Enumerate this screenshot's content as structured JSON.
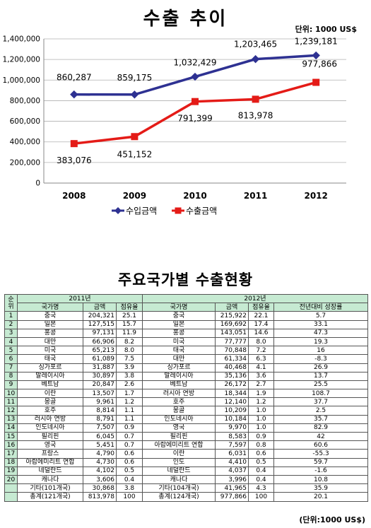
{
  "chart_data": {
    "type": "line",
    "title": "수출 추이",
    "unit": "단위: 1000 US$",
    "categories": [
      "2008",
      "2009",
      "2010",
      "2011",
      "2012"
    ],
    "series": [
      {
        "name": "수입금액",
        "color": "#2e3192",
        "marker": "diamond",
        "values": [
          860287,
          859175,
          1032429,
          1203465,
          1239181
        ],
        "labels": [
          "860,287",
          "859,175",
          "1,032,429",
          "1,203,465",
          "1,239,181"
        ]
      },
      {
        "name": "수출금액",
        "color": "#e41b17",
        "marker": "square",
        "values": [
          383076,
          451152,
          791399,
          813978,
          977866
        ],
        "labels": [
          "383,076",
          "451,152",
          "791,399",
          "813,978",
          "977,866"
        ]
      }
    ],
    "ylim": [
      0,
      1400000
    ],
    "yticks": [
      0,
      200000,
      400000,
      600000,
      800000,
      1000000,
      1200000,
      1400000
    ],
    "ytick_labels": [
      "0",
      "200,000",
      "400,000",
      "600,000",
      "800,000",
      "1,000,000",
      "1,200,000",
      "1,400,000"
    ],
    "legend": "bottom"
  },
  "table": {
    "title": "주요국가별 수출현황",
    "rank_header": "순위",
    "year1": "2011년",
    "year2": "2012년",
    "cols1": [
      "국가명",
      "금액",
      "점유율"
    ],
    "cols2": [
      "국가명",
      "금액",
      "점유율",
      "전년대비 성장률"
    ],
    "rows": [
      [
        "1",
        "중국",
        "204,321",
        "25.1",
        "중국",
        "215,922",
        "22.1",
        "5.7"
      ],
      [
        "2",
        "일본",
        "127,515",
        "15.7",
        "일본",
        "169,692",
        "17.4",
        "33.1"
      ],
      [
        "3",
        "홍콩",
        "97,131",
        "11.9",
        "홍콩",
        "143,051",
        "14.6",
        "47.3"
      ],
      [
        "4",
        "대만",
        "66,906",
        "8.2",
        "미국",
        "77,777",
        "8.0",
        "19.3"
      ],
      [
        "5",
        "미국",
        "65,213",
        "8.0",
        "태국",
        "70,848",
        "7.2",
        "16"
      ],
      [
        "6",
        "태국",
        "61,089",
        "7.5",
        "대만",
        "61,334",
        "6.3",
        "-8.3"
      ],
      [
        "7",
        "싱가포르",
        "31,887",
        "3.9",
        "싱가포르",
        "40,468",
        "4.1",
        "26.9"
      ],
      [
        "8",
        "말레이시아",
        "30,897",
        "3.8",
        "말레이시아",
        "35,136",
        "3.6",
        "13.7"
      ],
      [
        "9",
        "베트남",
        "20,847",
        "2.6",
        "베트남",
        "26,172",
        "2.7",
        "25.5"
      ],
      [
        "10",
        "이란",
        "13,507",
        "1.7",
        "러시아 연방",
        "18,344",
        "1.9",
        "108.7"
      ],
      [
        "11",
        "몽골",
        "9,961",
        "1.2",
        "호주",
        "12,140",
        "1.2",
        "37.7"
      ],
      [
        "12",
        "호주",
        "8,814",
        "1.1",
        "몽골",
        "10,209",
        "1.0",
        "2.5"
      ],
      [
        "13",
        "러시아 연방",
        "8,791",
        "1.1",
        "인도네시아",
        "10,184",
        "1.0",
        "35.7"
      ],
      [
        "14",
        "인도네시아",
        "7,507",
        "0.9",
        "영국",
        "9,970",
        "1.0",
        "82.9"
      ],
      [
        "15",
        "필리핀",
        "6,045",
        "0.7",
        "필리핀",
        "8,583",
        "0.9",
        "42"
      ],
      [
        "16",
        "영국",
        "5,451",
        "0.7",
        "아랍에미리트 연합",
        "7,597",
        "0.8",
        "60.6"
      ],
      [
        "17",
        "프랑스",
        "4,790",
        "0.6",
        "이란",
        "6,031",
        "0.6",
        "-55.3"
      ],
      [
        "18",
        "아랍에미리트 연합",
        "4,730",
        "0.6",
        "인도",
        "4,410",
        "0.5",
        "59.7"
      ],
      [
        "19",
        "네덜란드",
        "4,102",
        "0.5",
        "네덜란드",
        "4,037",
        "0.4",
        "-1.6"
      ],
      [
        "20",
        "캐나다",
        "3,606",
        "0.4",
        "캐나다",
        "3,996",
        "0.4",
        "10.8"
      ],
      [
        "",
        "기타(101개국)",
        "30,868",
        "3.8",
        "기타(104개국)",
        "41,965",
        "4.3",
        "35.9"
      ],
      [
        "",
        "총계(121개국)",
        "813,978",
        "100",
        "총계(124개국)",
        "977,866",
        "100",
        "20.1"
      ]
    ],
    "unit": "(단위:1000 US$)"
  }
}
